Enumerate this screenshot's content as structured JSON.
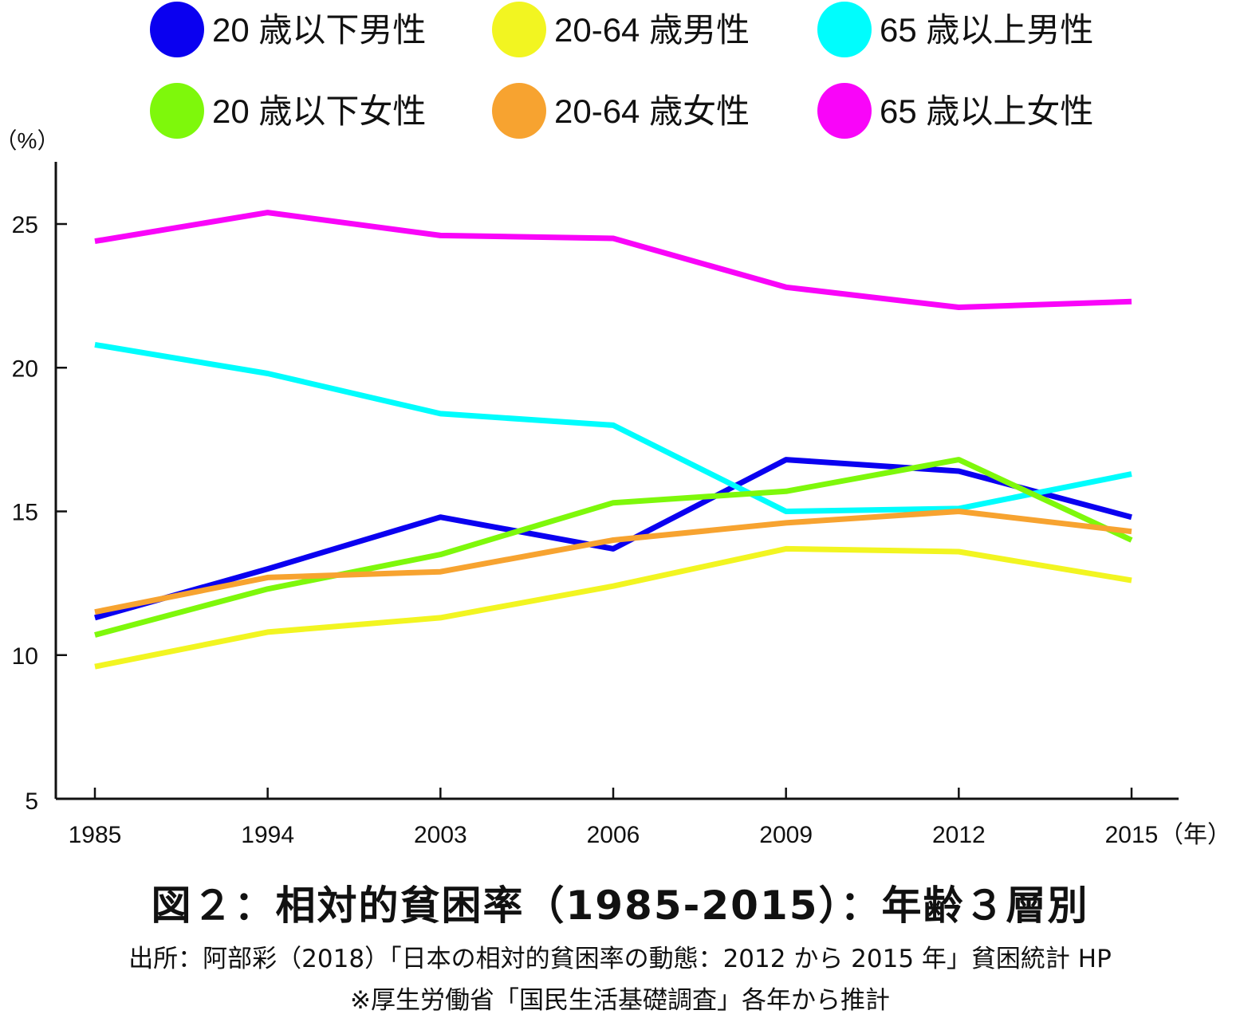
{
  "figure": {
    "title": "図２：相対的貧困率（1985-2015）：年齢３層別",
    "source": "出所：阿部彩（2018）「日本の相対的貧困率の動態：2012 から 2015 年」貧困統計 HP",
    "note": "※厚生労働省「国民生活基礎調査」各年から推計"
  },
  "chart_data": {
    "type": "line",
    "title": "",
    "xlabel": "（年）",
    "ylabel": "（%）",
    "ylim": [
      5,
      27
    ],
    "yticks": [
      5,
      10,
      15,
      20,
      25
    ],
    "categories": [
      "1985",
      "1994",
      "2003",
      "2006",
      "2009",
      "2012",
      "2015"
    ],
    "grid": false,
    "legend_position": "top",
    "series": [
      {
        "name": "20 歳以下男性",
        "color": "#0a00f0",
        "values": [
          11.3,
          13.0,
          14.8,
          13.7,
          16.8,
          16.4,
          14.8
        ]
      },
      {
        "name": "20-64 歳男性",
        "color": "#f2f521",
        "values": [
          9.6,
          10.8,
          11.3,
          12.4,
          13.7,
          13.6,
          12.6
        ]
      },
      {
        "name": "65 歳以上男性",
        "color": "#00fdfd",
        "values": [
          20.8,
          19.8,
          18.4,
          18.0,
          15.0,
          15.1,
          16.3
        ]
      },
      {
        "name": "20 歳以下女性",
        "color": "#7ef80b",
        "values": [
          10.7,
          12.3,
          13.5,
          15.3,
          15.7,
          16.8,
          14.0
        ]
      },
      {
        "name": "20-64 歳女性",
        "color": "#f7a330",
        "values": [
          11.5,
          12.7,
          12.9,
          14.0,
          14.6,
          15.0,
          14.3
        ]
      },
      {
        "name": "65 歳以上女性",
        "color": "#f905f9",
        "values": [
          24.4,
          25.4,
          24.6,
          24.5,
          22.8,
          22.1,
          22.3
        ]
      }
    ]
  }
}
